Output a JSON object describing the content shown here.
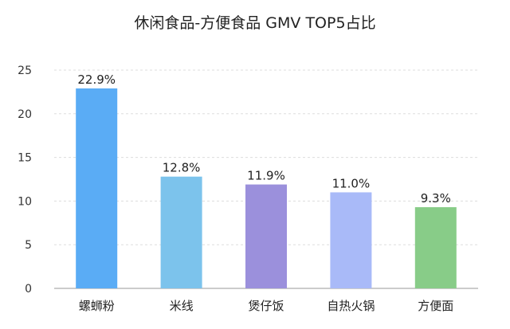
{
  "chart_data": {
    "type": "bar",
    "title": "休闲食品-方便食品 GMV TOP5占比",
    "xlabel": "",
    "ylabel": "",
    "categories": [
      "螺蛳粉",
      "米线",
      "煲仔饭",
      "自热火锅",
      "方便面"
    ],
    "values": [
      22.9,
      12.8,
      11.9,
      11.0,
      9.3
    ],
    "data_labels": [
      "22.9%",
      "12.8%",
      "11.9%",
      "11.0%",
      "9.3%"
    ],
    "colors": [
      "#5aacf5",
      "#7cc3ec",
      "#9b90dc",
      "#a9baf8",
      "#88cc88"
    ],
    "ylim": [
      0,
      25
    ],
    "yticks": [
      0,
      5,
      10,
      15,
      20,
      25
    ],
    "grid": true,
    "legend": "none"
  }
}
